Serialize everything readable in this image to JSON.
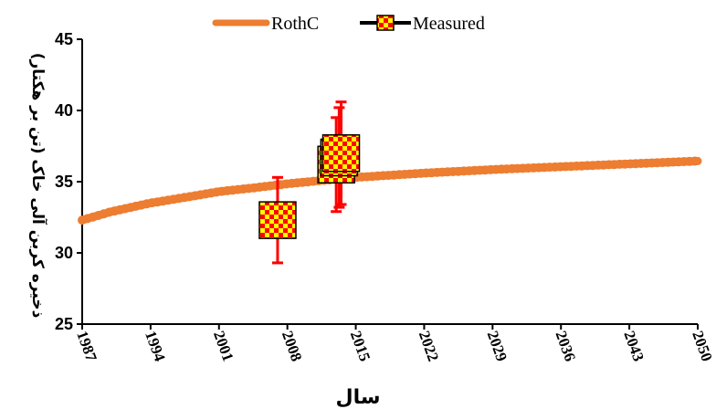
{
  "chart_data": {
    "type": "line",
    "xlabel": "سال",
    "ylabel": "ذخیره کربن آلی خاک (تن بر هکتار)",
    "xlim": [
      1987,
      2050
    ],
    "ylim": [
      25,
      45
    ],
    "x_ticks": [
      "1987",
      "1994",
      "2001",
      "2008",
      "2015",
      "2022",
      "2029",
      "2036",
      "2043",
      "2050"
    ],
    "y_ticks": [
      "25",
      "30",
      "35",
      "40",
      "45"
    ],
    "legend_position": "top",
    "grid": false,
    "series": [
      {
        "name": "RothC",
        "kind": "line",
        "color": "#ED7D31",
        "x": [
          1987,
          1990,
          1994,
          1998,
          2001,
          2005,
          2008,
          2011,
          2015,
          2022,
          2029,
          2036,
          2043,
          2050
        ],
        "y": [
          32.3,
          32.9,
          33.5,
          33.95,
          34.3,
          34.6,
          34.85,
          35.05,
          35.3,
          35.6,
          35.85,
          36.05,
          36.25,
          36.45
        ]
      },
      {
        "name": "Measured",
        "kind": "scatter_errorbar",
        "marker_colors": [
          "#FFFF00",
          "#FF0000"
        ],
        "error_color": "#FF0000",
        "points": [
          {
            "x": 2007,
            "y": 32.3,
            "err": 3.0
          },
          {
            "x": 2013,
            "y": 36.2,
            "err": 3.3
          },
          {
            "x": 2013.3,
            "y": 36.7,
            "err": 3.5
          },
          {
            "x": 2013.5,
            "y": 37.0,
            "err": 3.6
          }
        ]
      }
    ]
  }
}
